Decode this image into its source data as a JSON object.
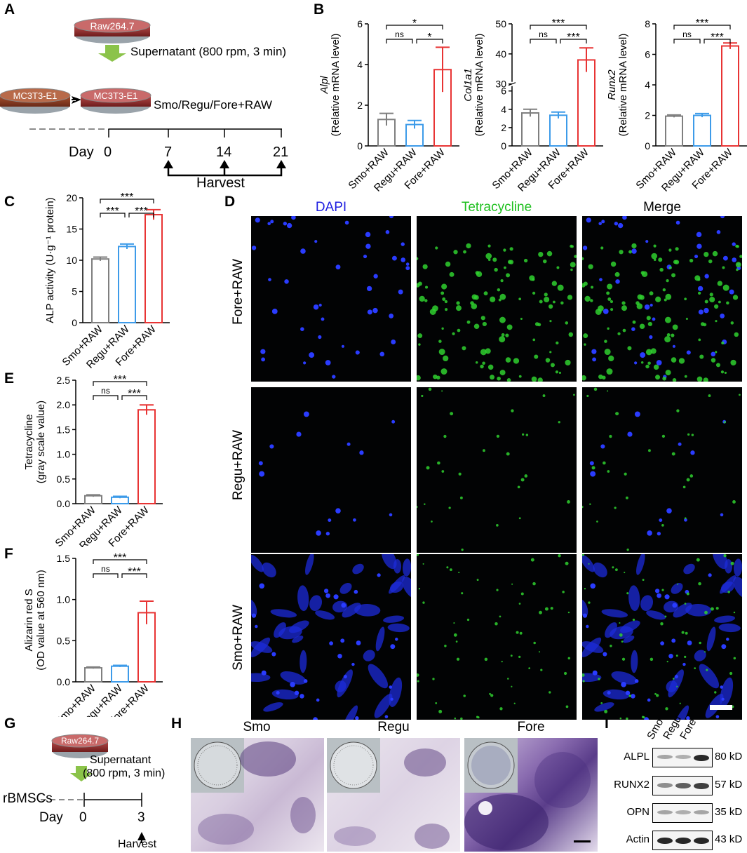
{
  "panels": {
    "A": {
      "label": "A",
      "dish_top": "Raw264.7",
      "arrow_text": "Supernatant (800 rpm, 3 min)",
      "dish_left": "MC3T3-E1",
      "dish_right": "MC3T3-E1",
      "treat_text": "Smo/Regu/Fore+RAW",
      "timeline_label": "Day",
      "days": [
        "0",
        "7",
        "14",
        "21"
      ],
      "harvest": "Harvest"
    },
    "B": {
      "label": "B"
    },
    "C": {
      "label": "C"
    },
    "D": {
      "label": "D",
      "col_titles": [
        "DAPI",
        "Tetracycline",
        "Merge"
      ],
      "col_colors": [
        "#1f1fe0",
        "#20c020",
        "#000000"
      ],
      "row_labels": [
        "Fore+RAW",
        "Regu+RAW",
        "Smo+RAW"
      ]
    },
    "E": {
      "label": "E"
    },
    "F": {
      "label": "F"
    },
    "G": {
      "label": "G",
      "dish": "Raw264.7",
      "arrow_text_1": "Supernatant",
      "arrow_text_2": "(800 rpm, 3 min)",
      "cells": "rBMSCs",
      "day_label": "Day",
      "days": [
        "0",
        "3"
      ],
      "harvest": "Harvest"
    },
    "H": {
      "label": "H",
      "titles": [
        "Smo",
        "Regu",
        "Fore"
      ]
    },
    "I": {
      "label": "I",
      "lanes": [
        "Smo",
        "Regu",
        "Fore"
      ],
      "proteins": [
        "ALPL",
        "RUNX2",
        "OPN",
        "Actin"
      ],
      "sizes": [
        "80 kD",
        "57 kD",
        "35 kD",
        "43 kD"
      ]
    }
  },
  "colors": {
    "smo": "#7f7f7f",
    "regu": "#3d9be9",
    "fore": "#e83434"
  },
  "chart_data": [
    {
      "id": "B1",
      "type": "bar",
      "categories": [
        "Smo+RAW",
        "Regu+RAW",
        "Fore+RAW"
      ],
      "values": [
        1.3,
        1.05,
        3.75
      ],
      "errors": [
        0.3,
        0.2,
        1.1
      ],
      "ylabel_italic": "Alpl",
      "ylabel": "(Relative mRNA level)",
      "ylim": [
        0,
        6
      ],
      "yticks": [
        0,
        2,
        4,
        6
      ],
      "sig": [
        {
          "pair": [
            0,
            2
          ],
          "text": "*"
        },
        {
          "pair": [
            0,
            1
          ],
          "text": "ns"
        },
        {
          "pair": [
            1,
            2
          ],
          "text": "*"
        }
      ]
    },
    {
      "id": "B2",
      "type": "bar",
      "categories": [
        "Smo+RAW",
        "Regu+RAW",
        "Fore+RAW"
      ],
      "values": [
        3.6,
        3.35,
        38
      ],
      "errors": [
        0.4,
        0.35,
        4
      ],
      "ylabel_italic": "Col1a1",
      "ylabel": "(Relative mRNA level)",
      "ylim": [
        0,
        50
      ],
      "yticks": [
        0,
        2,
        4,
        6,
        30,
        40,
        50
      ],
      "axis_break": [
        6,
        30
      ],
      "sig": [
        {
          "pair": [
            0,
            2
          ],
          "text": "***"
        },
        {
          "pair": [
            0,
            1
          ],
          "text": "ns"
        },
        {
          "pair": [
            1,
            2
          ],
          "text": "***"
        }
      ]
    },
    {
      "id": "B3",
      "type": "bar",
      "categories": [
        "Smo+RAW",
        "Regu+RAW",
        "Fore+RAW"
      ],
      "values": [
        1.95,
        2.0,
        6.55
      ],
      "errors": [
        0.08,
        0.12,
        0.2
      ],
      "ylabel_italic": "Runx2",
      "ylabel": "(Relative mRNA level)",
      "ylim": [
        0,
        8
      ],
      "yticks": [
        0,
        2,
        4,
        6,
        8
      ],
      "sig": [
        {
          "pair": [
            0,
            2
          ],
          "text": "***"
        },
        {
          "pair": [
            0,
            1
          ],
          "text": "ns"
        },
        {
          "pair": [
            1,
            2
          ],
          "text": "***"
        }
      ]
    },
    {
      "id": "C",
      "type": "bar",
      "categories": [
        "Smo+RAW",
        "Regu+RAW",
        "Fore+RAW"
      ],
      "values": [
        10.2,
        12.2,
        17.3
      ],
      "errors": [
        0.3,
        0.4,
        0.8
      ],
      "ylabel": "ALP activity (U·g⁻¹ protein)",
      "ylim": [
        0,
        20
      ],
      "yticks": [
        0,
        5,
        10,
        15,
        20
      ],
      "sig": [
        {
          "pair": [
            0,
            2
          ],
          "text": "***"
        },
        {
          "pair": [
            0,
            1
          ],
          "text": "***"
        },
        {
          "pair": [
            1,
            2
          ],
          "text": "***"
        }
      ]
    },
    {
      "id": "E",
      "type": "bar",
      "categories": [
        "Smo+RAW",
        "Regu+RAW",
        "Fore+RAW"
      ],
      "values": [
        0.16,
        0.13,
        1.9
      ],
      "errors": [
        0.02,
        0.02,
        0.1
      ],
      "ylabel": "Tetracycline",
      "ylabel2": "(gray scale value)",
      "ylim": [
        0,
        2.5
      ],
      "yticks": [
        0,
        0.5,
        1.0,
        1.5,
        2.0,
        2.5
      ],
      "sig": [
        {
          "pair": [
            0,
            2
          ],
          "text": "***"
        },
        {
          "pair": [
            0,
            1
          ],
          "text": "ns"
        },
        {
          "pair": [
            1,
            2
          ],
          "text": "***"
        }
      ]
    },
    {
      "id": "F",
      "type": "bar",
      "categories": [
        "Smo+RAW",
        "Regu+RAW",
        "Fore+RAW"
      ],
      "values": [
        0.17,
        0.19,
        0.84
      ],
      "errors": [
        0.01,
        0.01,
        0.14
      ],
      "ylabel": "Alizarin red S",
      "ylabel2": "(OD value at 560 nm)",
      "ylim": [
        0,
        1.5
      ],
      "yticks": [
        0,
        0.5,
        1.0,
        1.5
      ],
      "sig": [
        {
          "pair": [
            0,
            2
          ],
          "text": "***"
        },
        {
          "pair": [
            0,
            1
          ],
          "text": "ns"
        },
        {
          "pair": [
            1,
            2
          ],
          "text": "***"
        }
      ]
    }
  ]
}
